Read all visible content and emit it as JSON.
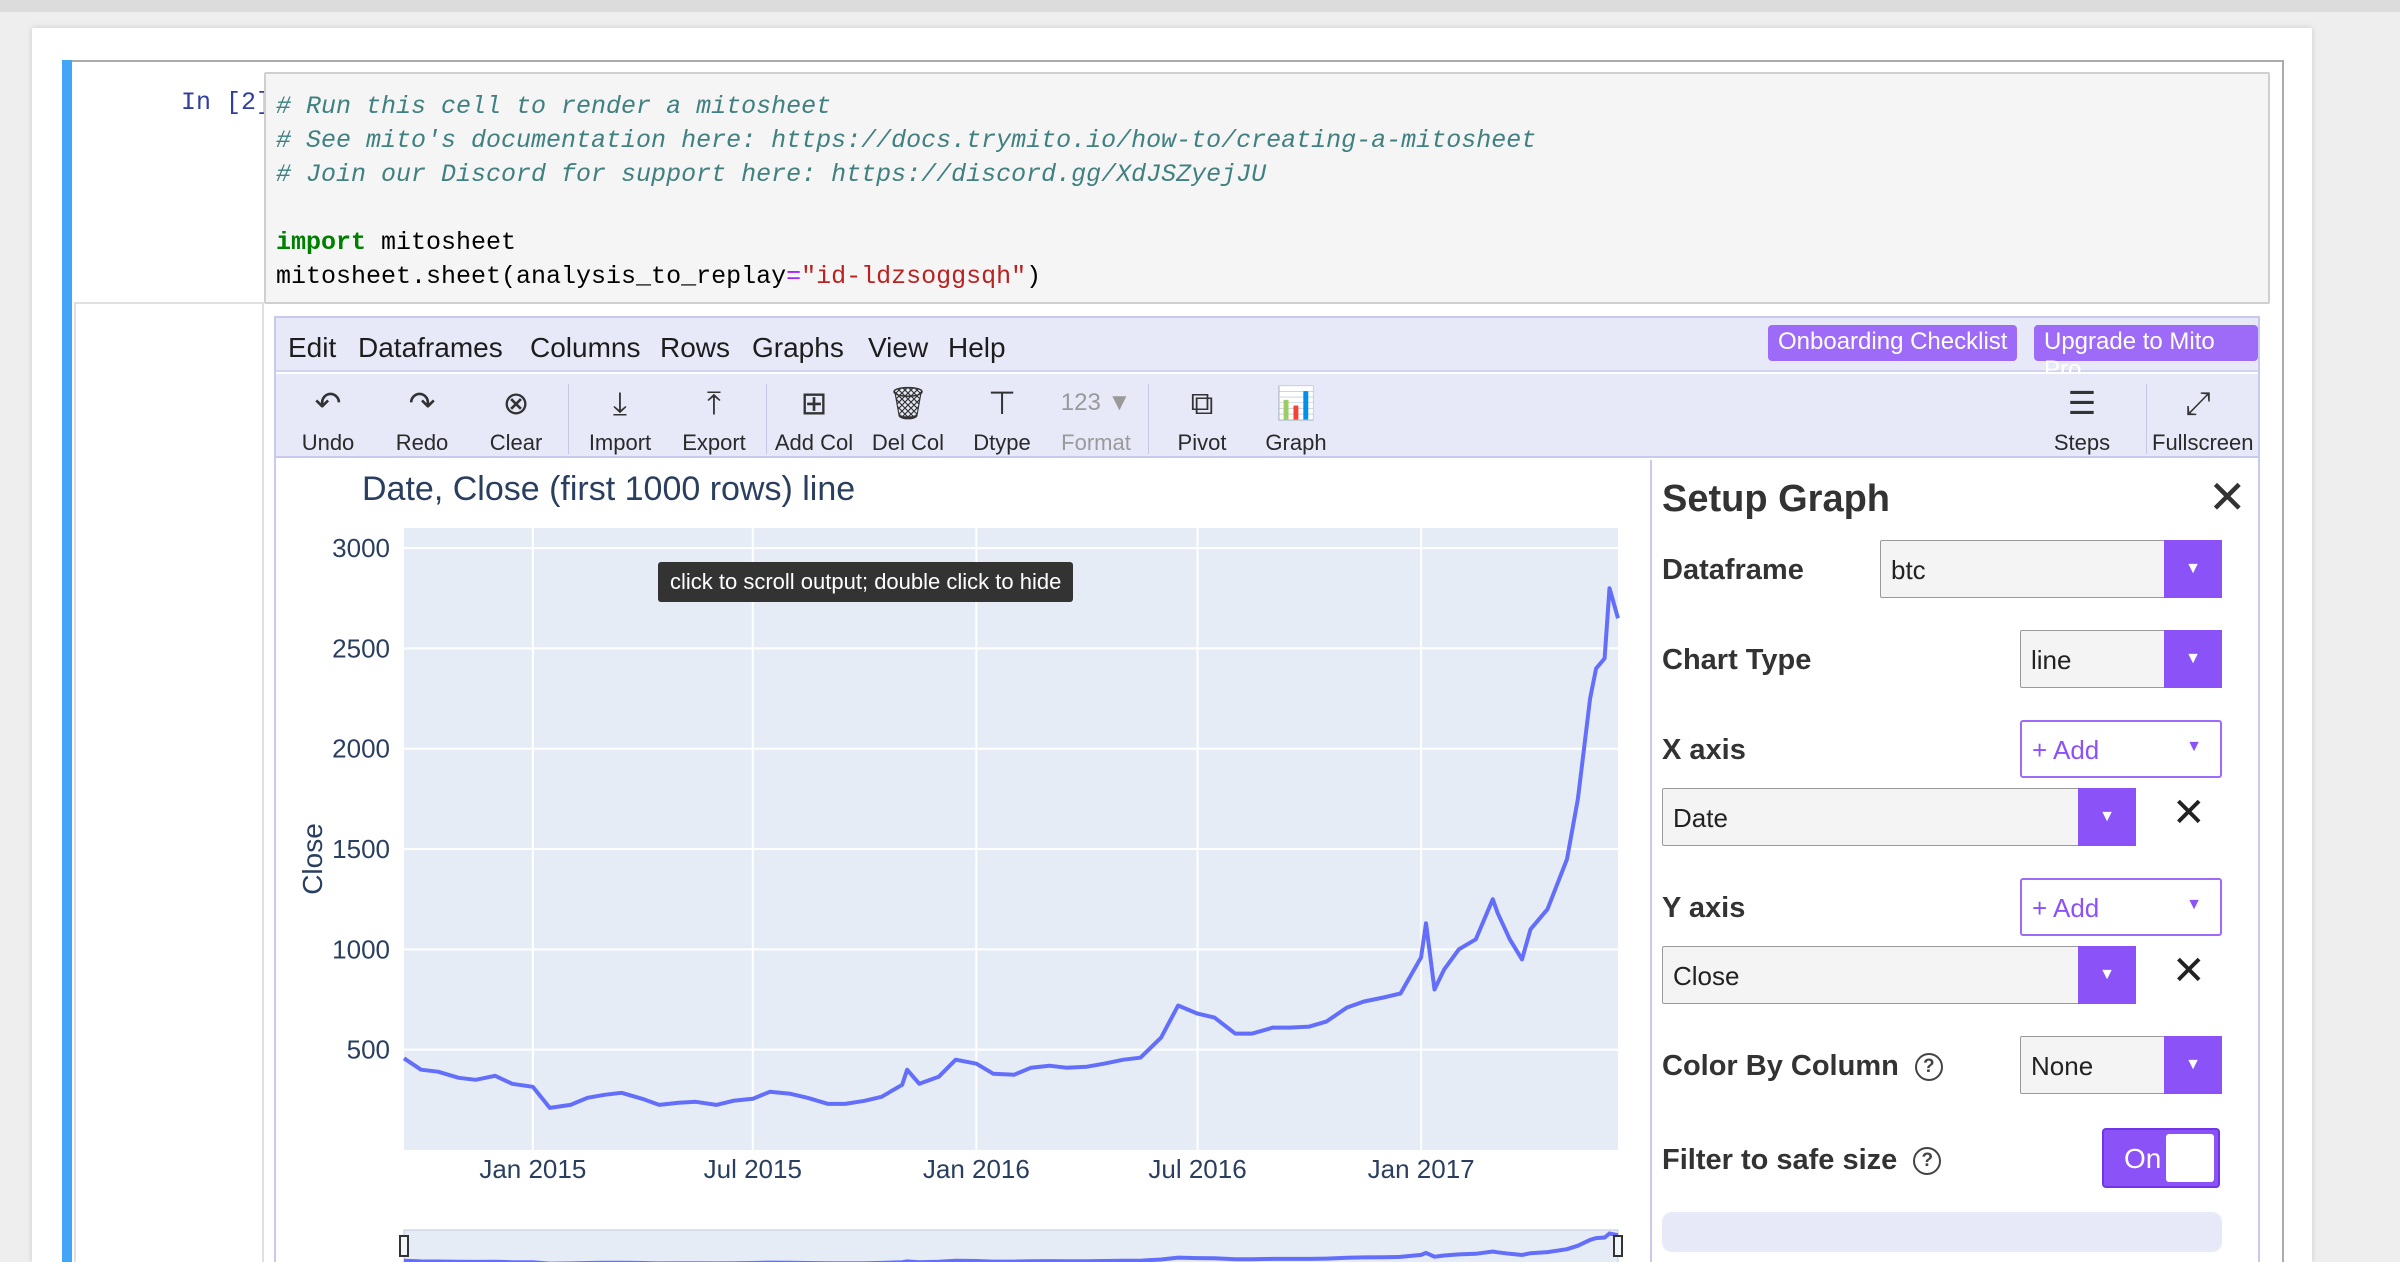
{
  "cell": {
    "prompt": "In [2]:",
    "code_lines": [
      "# Run this cell to render a mitosheet",
      "# See mito's documentation here: https://docs.trymito.io/how-to/creating-a-mitosheet",
      "# Join our Discord for support here: https://discord.gg/XdJSZyejJU",
      "",
      "import mitosheet",
      "mitosheet.sheet(analysis_to_replay=\"id-ldzsoggsqh\")"
    ],
    "kw_import": "import",
    "mod_name": " mitosheet",
    "call_prefix": "mitosheet.sheet(analysis_to_replay",
    "call_eq": "=",
    "call_str": "\"id-ldzsoggsqh\"",
    "call_suffix": ")"
  },
  "menu": {
    "items": [
      "Edit",
      "Dataframes",
      "Columns",
      "Rows",
      "Graphs",
      "View",
      "Help"
    ],
    "onboarding": "Onboarding Checklist",
    "upgrade": "Upgrade to Mito Pro"
  },
  "toolbar": {
    "undo": "Undo",
    "redo": "Redo",
    "clear": "Clear",
    "import": "Import",
    "export": "Export",
    "add_col": "Add Col",
    "del_col": "Del Col",
    "dtype": "Dtype",
    "format": "Format",
    "format_icon_text": "123 ▼",
    "pivot": "Pivot",
    "graph": "Graph",
    "steps": "Steps",
    "fullscreen": "Fullscreen"
  },
  "tooltip": "click to scroll output; double click to hide",
  "chart_data": {
    "type": "line",
    "title": "Date, Close (first 1000 rows) line",
    "xlabel": "",
    "ylabel": "Close",
    "ylim": [
      0,
      3100
    ],
    "yticks": [
      500,
      1000,
      1500,
      2000,
      2500,
      3000
    ],
    "xticks": [
      "Jan 2015",
      "Jul 2015",
      "Jan 2016",
      "Jul 2016",
      "Jan 2017"
    ],
    "xtick_dates": [
      "2015-01-01",
      "2015-07-01",
      "2016-01-01",
      "2016-07-01",
      "2017-01-01"
    ],
    "xrange": [
      "2014-09-17",
      "2017-06-12"
    ],
    "grid": true,
    "series": [
      {
        "color": "#636efa",
        "x": [
          "2014-09-17",
          "2014-10-01",
          "2014-10-15",
          "2014-11-01",
          "2014-11-15",
          "2014-12-01",
          "2014-12-15",
          "2015-01-01",
          "2015-01-15",
          "2015-02-01",
          "2015-02-15",
          "2015-03-01",
          "2015-03-15",
          "2015-04-01",
          "2015-04-15",
          "2015-05-01",
          "2015-05-15",
          "2015-06-01",
          "2015-06-15",
          "2015-07-01",
          "2015-07-15",
          "2015-08-01",
          "2015-08-15",
          "2015-09-01",
          "2015-09-15",
          "2015-10-01",
          "2015-10-15",
          "2015-11-01",
          "2015-11-05",
          "2015-11-15",
          "2015-12-01",
          "2015-12-15",
          "2016-01-01",
          "2016-01-15",
          "2016-02-01",
          "2016-02-15",
          "2016-03-01",
          "2016-03-15",
          "2016-04-01",
          "2016-04-15",
          "2016-05-01",
          "2016-05-15",
          "2016-06-01",
          "2016-06-15",
          "2016-07-01",
          "2016-07-15",
          "2016-08-01",
          "2016-08-15",
          "2016-09-01",
          "2016-09-15",
          "2016-10-01",
          "2016-10-15",
          "2016-11-01",
          "2016-11-15",
          "2016-12-01",
          "2016-12-15",
          "2017-01-01",
          "2017-01-05",
          "2017-01-12",
          "2017-01-20",
          "2017-02-01",
          "2017-02-15",
          "2017-03-01",
          "2017-03-05",
          "2017-03-15",
          "2017-03-25",
          "2017-04-01",
          "2017-04-15",
          "2017-05-01",
          "2017-05-10",
          "2017-05-15",
          "2017-05-20",
          "2017-05-25",
          "2017-06-01",
          "2017-06-05",
          "2017-06-12"
        ],
        "y": [
          457,
          400,
          390,
          360,
          350,
          370,
          330,
          315,
          210,
          225,
          260,
          275,
          285,
          255,
          225,
          235,
          240,
          225,
          245,
          255,
          290,
          280,
          260,
          230,
          230,
          245,
          265,
          325,
          400,
          330,
          365,
          450,
          430,
          380,
          375,
          410,
          420,
          410,
          415,
          430,
          450,
          460,
          560,
          720,
          680,
          660,
          580,
          580,
          610,
          610,
          615,
          640,
          710,
          740,
          760,
          780,
          960,
          1130,
          800,
          900,
          1000,
          1050,
          1250,
          1180,
          1050,
          950,
          1100,
          1200,
          1450,
          1750,
          2000,
          2250,
          2400,
          2450,
          2800,
          2650
        ]
      }
    ]
  },
  "sidebar": {
    "title": "Setup Graph",
    "dataframe_label": "Dataframe",
    "dataframe_value": "btc",
    "chart_type_label": "Chart Type",
    "chart_type_value": "line",
    "x_axis_label": "X axis",
    "x_add": "+ Add",
    "x_value": "Date",
    "y_axis_label": "Y axis",
    "y_add": "+ Add",
    "y_value": "Close",
    "color_by_label": "Color By Column",
    "color_by_value": "None",
    "filter_label": "Filter to safe size",
    "filter_toggle": "On"
  }
}
